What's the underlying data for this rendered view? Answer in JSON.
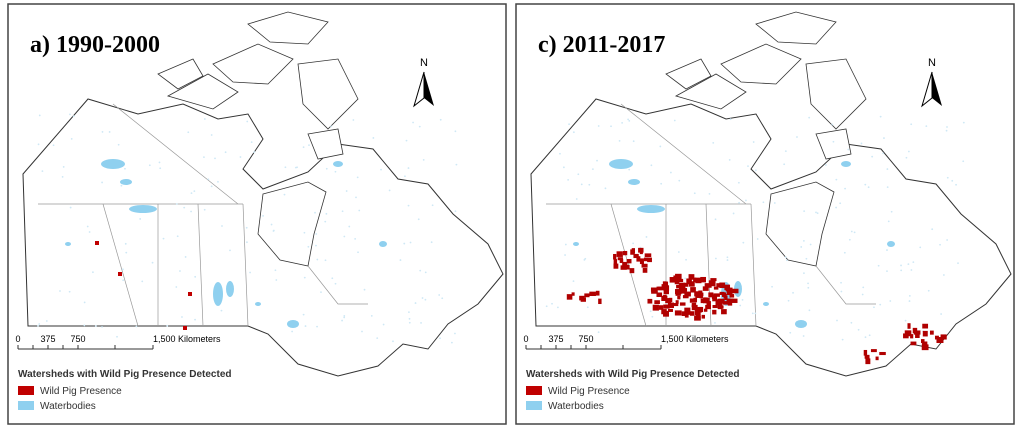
{
  "panels": [
    {
      "title": "a) 1990-2000",
      "north": "N",
      "scale_labels": [
        "0",
        "375",
        "750",
        "1,500 Kilometers"
      ],
      "legend": {
        "title": "Watersheds with Wild Pig Presence Detected",
        "items": [
          "Wild Pig Presence",
          "Waterbodies"
        ]
      }
    },
    {
      "title": "c) 2011-2017",
      "north": "N",
      "scale_labels": [
        "0",
        "375",
        "750",
        "1,500 Kilometers"
      ],
      "legend": {
        "title": "Watersheds with Wild Pig Presence Detected",
        "items": [
          "Wild Pig Presence",
          "Waterbodies"
        ]
      }
    }
  ]
}
